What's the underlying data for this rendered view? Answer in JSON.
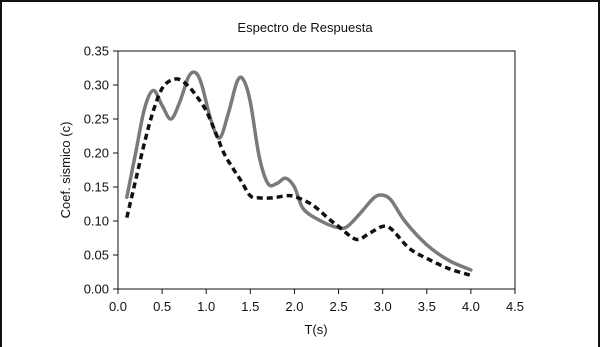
{
  "chart_data": {
    "type": "line",
    "title": "Espectro de Respuesta",
    "xlabel": "T(s)",
    "ylabel": "Coef. sismico (c)",
    "xlim": [
      0.0,
      4.5
    ],
    "ylim": [
      0.0,
      0.35
    ],
    "x_ticks": [
      "0.0",
      "0.5",
      "1.0",
      "1.5",
      "2.0",
      "2.5",
      "3.0",
      "3.5",
      "4.0",
      "4.5"
    ],
    "y_ticks": [
      "0.00",
      "0.05",
      "0.10",
      "0.15",
      "0.20",
      "0.25",
      "0.30",
      "0.35"
    ],
    "grid": false,
    "legend": "none",
    "series": [
      {
        "style": "solid",
        "color": "#7a7a7a",
        "points": [
          [
            0.1,
            0.135
          ],
          [
            0.2,
            0.2
          ],
          [
            0.3,
            0.265
          ],
          [
            0.4,
            0.292
          ],
          [
            0.5,
            0.27
          ],
          [
            0.6,
            0.25
          ],
          [
            0.7,
            0.275
          ],
          [
            0.8,
            0.312
          ],
          [
            0.88,
            0.318
          ],
          [
            0.95,
            0.3
          ],
          [
            1.05,
            0.25
          ],
          [
            1.15,
            0.222
          ],
          [
            1.25,
            0.258
          ],
          [
            1.35,
            0.305
          ],
          [
            1.42,
            0.308
          ],
          [
            1.5,
            0.275
          ],
          [
            1.6,
            0.195
          ],
          [
            1.7,
            0.155
          ],
          [
            1.8,
            0.155
          ],
          [
            1.9,
            0.163
          ],
          [
            2.0,
            0.15
          ],
          [
            2.1,
            0.118
          ],
          [
            2.3,
            0.1
          ],
          [
            2.5,
            0.09
          ],
          [
            2.6,
            0.092
          ],
          [
            2.75,
            0.112
          ],
          [
            2.9,
            0.134
          ],
          [
            3.0,
            0.138
          ],
          [
            3.1,
            0.13
          ],
          [
            3.25,
            0.1
          ],
          [
            3.5,
            0.065
          ],
          [
            3.75,
            0.042
          ],
          [
            4.0,
            0.028
          ]
        ]
      },
      {
        "style": "dashed",
        "color": "#111111",
        "points": [
          [
            0.1,
            0.105
          ],
          [
            0.2,
            0.16
          ],
          [
            0.3,
            0.215
          ],
          [
            0.4,
            0.262
          ],
          [
            0.5,
            0.295
          ],
          [
            0.6,
            0.307
          ],
          [
            0.7,
            0.308
          ],
          [
            0.8,
            0.298
          ],
          [
            0.9,
            0.282
          ],
          [
            1.0,
            0.262
          ],
          [
            1.1,
            0.232
          ],
          [
            1.2,
            0.2
          ],
          [
            1.3,
            0.178
          ],
          [
            1.4,
            0.158
          ],
          [
            1.5,
            0.137
          ],
          [
            1.6,
            0.134
          ],
          [
            1.75,
            0.134
          ],
          [
            1.9,
            0.137
          ],
          [
            2.0,
            0.136
          ],
          [
            2.2,
            0.124
          ],
          [
            2.4,
            0.102
          ],
          [
            2.5,
            0.092
          ],
          [
            2.7,
            0.073
          ],
          [
            2.85,
            0.082
          ],
          [
            3.0,
            0.092
          ],
          [
            3.1,
            0.088
          ],
          [
            3.3,
            0.06
          ],
          [
            3.5,
            0.045
          ],
          [
            3.75,
            0.03
          ],
          [
            4.0,
            0.02
          ]
        ]
      }
    ]
  }
}
